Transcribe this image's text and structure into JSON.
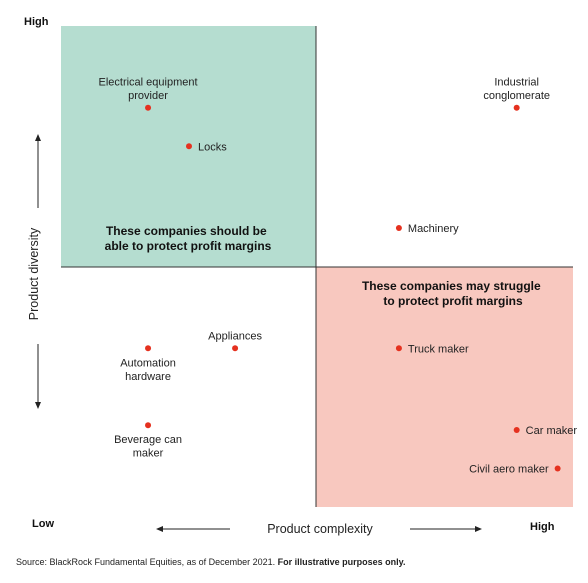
{
  "chart_data": {
    "type": "scatter",
    "title": "",
    "xlabel": "Product complexity",
    "ylabel": "Product diversity",
    "x_low_label": "Low",
    "x_high_label": "High",
    "y_high_label": "High",
    "xlim": [
      0,
      10
    ],
    "ylim": [
      0,
      10
    ],
    "grid": false,
    "points": [
      {
        "label": "Electrical equipment provider",
        "lines": [
          "Electrical equipment",
          "provider"
        ],
        "x": 1.7,
        "y": 8.3
      },
      {
        "label": "Locks",
        "lines": [
          "Locks"
        ],
        "x": 2.5,
        "y": 7.5
      },
      {
        "label": "Industrial conglomerate",
        "lines": [
          "Industrial",
          "conglomerate"
        ],
        "x": 8.9,
        "y": 8.3
      },
      {
        "label": "Machinery",
        "lines": [
          "Machinery"
        ],
        "x": 6.6,
        "y": 5.8
      },
      {
        "label": "Appliances",
        "lines": [
          "Appliances"
        ],
        "x": 3.4,
        "y": 3.3
      },
      {
        "label": "Automation hardware",
        "lines": [
          "Automation",
          "hardware"
        ],
        "x": 1.7,
        "y": 3.3
      },
      {
        "label": "Truck maker",
        "lines": [
          "Truck maker"
        ],
        "x": 6.6,
        "y": 3.3
      },
      {
        "label": "Beverage can maker",
        "lines": [
          "Beverage can",
          "maker"
        ],
        "x": 1.7,
        "y": 1.7
      },
      {
        "label": "Car maker",
        "lines": [
          "Car maker"
        ],
        "x": 8.9,
        "y": 1.6
      },
      {
        "label": "Civil aero maker",
        "lines": [
          "Civil aero maker"
        ],
        "x": 9.7,
        "y": 0.8
      }
    ],
    "quadrant_notes": [
      {
        "quadrant": "top-left",
        "lines": [
          "These companies should be",
          "able to protect profit margins"
        ],
        "color": "#b5ddd0"
      },
      {
        "quadrant": "bottom-right",
        "lines": [
          "These companies may struggle",
          "to protect profit margins"
        ],
        "color": "#f8c8bf"
      }
    ],
    "marker_color": "#e5311f"
  },
  "footer": {
    "source": "Source: BlackRock Fundamental Equities, as of December 2021.",
    "note": "For illustrative purposes only."
  }
}
